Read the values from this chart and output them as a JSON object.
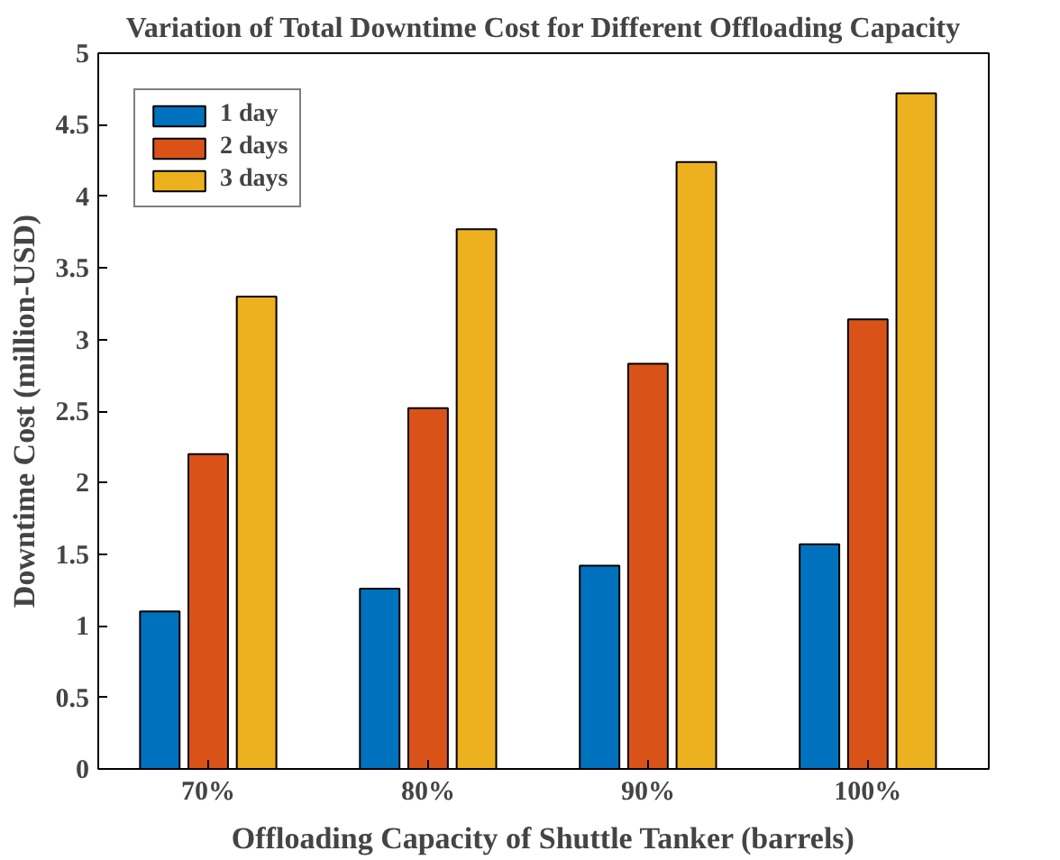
{
  "chart_data": {
    "type": "bar",
    "title": "Variation of Total Downtime Cost for Different Offloading Capacity",
    "xlabel": "Offloading Capacity of Shuttle Tanker (barrels)",
    "ylabel": "Downtime Cost (million-USD)",
    "categories": [
      "70%",
      "80%",
      "90%",
      "100%"
    ],
    "series": [
      {
        "name": "1 day",
        "color": "#0072bd",
        "values": [
          1.1,
          1.26,
          1.42,
          1.57
        ]
      },
      {
        "name": "2 days",
        "color": "#d95319",
        "values": [
          2.2,
          2.52,
          2.83,
          3.14
        ]
      },
      {
        "name": "3 days",
        "color": "#edb120",
        "values": [
          3.3,
          3.77,
          4.24,
          4.72
        ]
      }
    ],
    "ylim": [
      0,
      5
    ],
    "yticks": [
      0,
      {
        "value": 0.5,
        "label": "0.5"
      },
      1,
      {
        "value": 1.5,
        "label": "1.5"
      },
      2,
      {
        "value": 2.5,
        "label": "2.5"
      },
      3,
      {
        "value": 3.5,
        "label": "3.5"
      },
      4,
      {
        "value": 4.5,
        "label": "4.5"
      },
      5
    ],
    "grid": false,
    "legend": "top left"
  }
}
